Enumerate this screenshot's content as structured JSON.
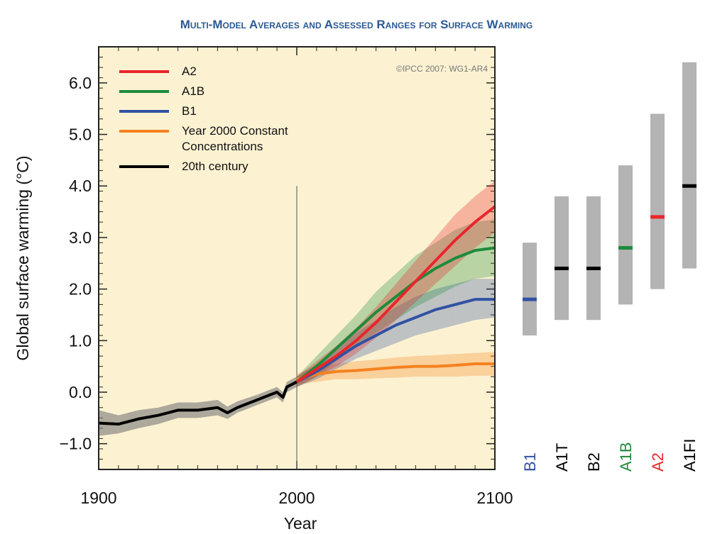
{
  "chart_data": [
    {
      "type": "line",
      "title": "Multi-Model Averages and Assessed Ranges for Surface Warming",
      "annotation": "©IPCC 2007: WG1-AR4",
      "x_label": "Year",
      "y_label": "Global surface warming (°C)",
      "xlim": [
        1900,
        2100
      ],
      "ylim": [
        -1.5,
        6.7
      ],
      "xticks": [
        1900,
        2000,
        2100
      ],
      "yticks": [
        {
          "value": -1,
          "label": "−1.0"
        },
        {
          "value": 0,
          "label": "0.0"
        },
        {
          "value": 1,
          "label": "1.0"
        },
        {
          "value": 2,
          "label": "2.0"
        },
        {
          "value": 3,
          "label": "3.0"
        },
        {
          "value": 4,
          "label": "4.0"
        },
        {
          "value": 5,
          "label": "5.0"
        },
        {
          "value": 6,
          "label": "6.0"
        }
      ],
      "x_minor_step": 10,
      "y_minor_step": 0.2,
      "reference_line": {
        "x": 2000,
        "y_top": 4.0
      },
      "background": "#fcf2d2",
      "series": [
        {
          "name": "A2",
          "color": "#e8262b",
          "x": [
            2000,
            2010,
            2020,
            2030,
            2040,
            2050,
            2060,
            2070,
            2080,
            2090,
            2100
          ],
          "values": [
            0.2,
            0.45,
            0.7,
            1.0,
            1.35,
            1.75,
            2.15,
            2.55,
            2.95,
            3.3,
            3.6
          ],
          "lower": [
            0.1,
            0.3,
            0.5,
            0.75,
            1.05,
            1.4,
            1.75,
            2.1,
            2.45,
            2.8,
            3.1
          ],
          "upper": [
            0.3,
            0.6,
            0.9,
            1.25,
            1.65,
            2.1,
            2.55,
            3.0,
            3.45,
            3.8,
            4.1
          ]
        },
        {
          "name": "A1B",
          "color": "#1f8a3c",
          "x": [
            2000,
            2010,
            2020,
            2030,
            2040,
            2050,
            2060,
            2070,
            2080,
            2090,
            2100
          ],
          "values": [
            0.2,
            0.5,
            0.85,
            1.2,
            1.55,
            1.85,
            2.15,
            2.4,
            2.6,
            2.75,
            2.8
          ],
          "lower": [
            0.1,
            0.3,
            0.6,
            0.9,
            1.15,
            1.4,
            1.65,
            1.85,
            2.05,
            2.2,
            2.25
          ],
          "upper": [
            0.3,
            0.7,
            1.1,
            1.5,
            1.95,
            2.3,
            2.65,
            2.9,
            3.15,
            3.3,
            3.35
          ]
        },
        {
          "name": "B1",
          "color": "#3152a3",
          "x": [
            2000,
            2010,
            2020,
            2030,
            2040,
            2050,
            2060,
            2070,
            2080,
            2090,
            2100
          ],
          "values": [
            0.2,
            0.4,
            0.65,
            0.9,
            1.1,
            1.3,
            1.45,
            1.6,
            1.7,
            1.8,
            1.8
          ],
          "lower": [
            0.1,
            0.25,
            0.45,
            0.65,
            0.8,
            0.95,
            1.1,
            1.2,
            1.3,
            1.4,
            1.45
          ],
          "upper": [
            0.3,
            0.55,
            0.85,
            1.15,
            1.4,
            1.65,
            1.85,
            2.0,
            2.1,
            2.2,
            2.2
          ]
        },
        {
          "name": "Year 2000 Constant Concentrations",
          "color": "#f5821f",
          "x": [
            2000,
            2010,
            2020,
            2030,
            2040,
            2050,
            2060,
            2070,
            2080,
            2090,
            2100
          ],
          "values": [
            0.25,
            0.35,
            0.4,
            0.42,
            0.45,
            0.48,
            0.5,
            0.5,
            0.52,
            0.55,
            0.55
          ],
          "lower": [
            0.15,
            0.2,
            0.25,
            0.25,
            0.27,
            0.28,
            0.3,
            0.3,
            0.3,
            0.32,
            0.32
          ],
          "upper": [
            0.35,
            0.5,
            0.55,
            0.6,
            0.63,
            0.67,
            0.7,
            0.72,
            0.74,
            0.76,
            0.78
          ]
        },
        {
          "name": "20th century",
          "color": "#000000",
          "x": [
            1900,
            1910,
            1920,
            1930,
            1940,
            1950,
            1960,
            1965,
            1970,
            1980,
            1990,
            1993,
            1995,
            2000
          ],
          "values": [
            -0.6,
            -0.62,
            -0.52,
            -0.45,
            -0.35,
            -0.35,
            -0.3,
            -0.4,
            -0.3,
            -0.15,
            0.0,
            -0.1,
            0.1,
            0.2
          ],
          "lower": [
            -0.85,
            -0.8,
            -0.7,
            -0.62,
            -0.5,
            -0.5,
            -0.45,
            -0.52,
            -0.4,
            -0.25,
            -0.1,
            -0.2,
            0.0,
            0.1
          ],
          "upper": [
            -0.35,
            -0.45,
            -0.35,
            -0.3,
            -0.2,
            -0.2,
            -0.15,
            -0.28,
            -0.18,
            -0.05,
            0.1,
            0.0,
            0.2,
            0.3
          ]
        }
      ]
    },
    {
      "type": "range",
      "ylim": [
        -1.5,
        6.7
      ],
      "color": "#b3b3b3",
      "categories": [
        "B1",
        "A1T",
        "B2",
        "A1B",
        "A2",
        "A1FI"
      ],
      "low": [
        1.1,
        1.4,
        1.4,
        1.7,
        2.0,
        2.4
      ],
      "high": [
        2.9,
        3.8,
        3.8,
        4.4,
        5.4,
        6.4
      ],
      "best": [
        1.8,
        2.4,
        2.4,
        2.8,
        3.4,
        4.0
      ],
      "colors": [
        "#3152a3",
        "#000000",
        "#000000",
        "#1f8a3c",
        "#e8262b",
        "#000000"
      ]
    }
  ]
}
